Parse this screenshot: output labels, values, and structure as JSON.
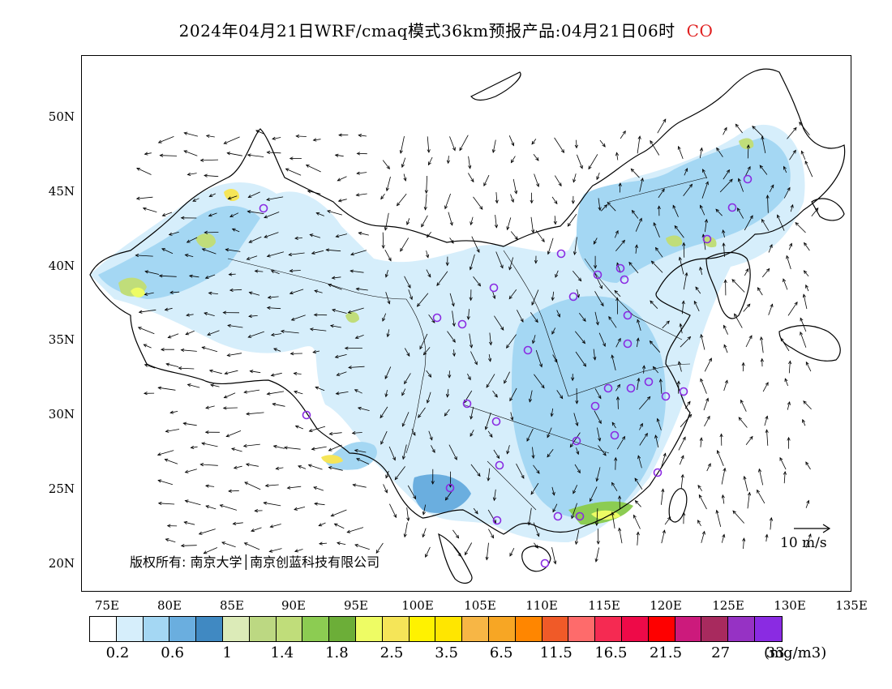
{
  "header": {
    "title": "2024年04月21日WRF/cmaq模式36km预报产品:04月21日06时",
    "species": "CO"
  },
  "axes": {
    "lat_labels": [
      "50N",
      "45N",
      "40N",
      "35N",
      "30N",
      "25N",
      "20N"
    ],
    "lon_labels": [
      "75E",
      "80E",
      "85E",
      "90E",
      "95E",
      "100E",
      "105E",
      "110E",
      "115E",
      "120E",
      "125E",
      "130E",
      "135E"
    ]
  },
  "copyright": "版权所有: 南京大学│南京创蓝科技有限公司",
  "wind_scale": {
    "label": "10 m/s"
  },
  "colorbar": {
    "colors": [
      "#ffffff",
      "#d6eefb",
      "#a4d7f3",
      "#6aaedf",
      "#4089c2",
      "#dcebb8",
      "#bcd882",
      "#c0dd7a",
      "#8ccc52",
      "#6cae38",
      "#eefc64",
      "#f5e558",
      "#fff200",
      "#ffe600",
      "#f7b645",
      "#f7a624",
      "#ff8600",
      "#f05a28",
      "#fe6b6b",
      "#f52a52",
      "#ee0a48",
      "#fe0000",
      "#cc1a7c",
      "#a82a5e",
      "#9632c4",
      "#8a2be2"
    ],
    "tick_labels": [
      "0.2",
      "0.6",
      "1",
      "1.4",
      "1.8",
      "2.5",
      "3.5",
      "6.5",
      "11.5",
      "16.5",
      "21.5",
      "27",
      "33"
    ],
    "unit": "(mg/m3)"
  }
}
